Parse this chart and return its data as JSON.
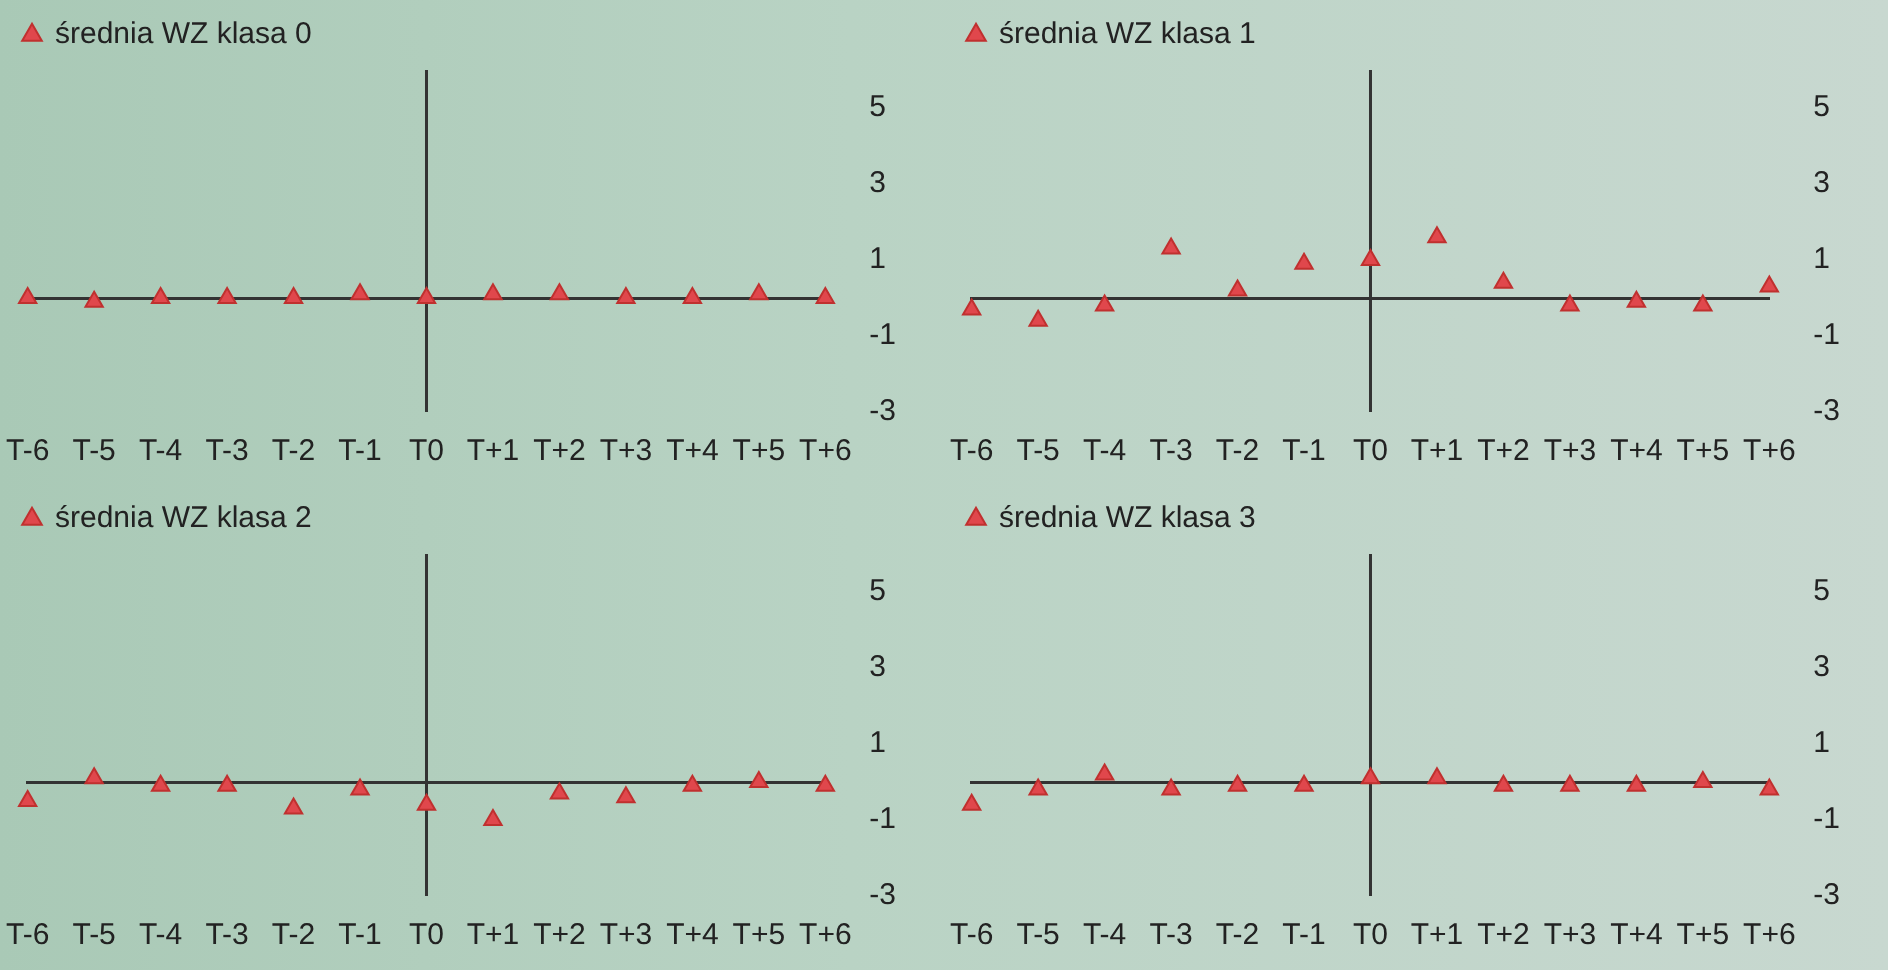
{
  "chart_data": [
    {
      "type": "scatter",
      "categories": [
        "T-6",
        "T-5",
        "T-4",
        "T-3",
        "T-2",
        "T-1",
        "T0",
        "T+1",
        "T+2",
        "T+3",
        "T+4",
        "T+5",
        "T+6"
      ],
      "series": [
        {
          "name": "średnia WZ klasa 0",
          "color": "#e0474c",
          "values": [
            0,
            -0.1,
            0,
            0,
            0,
            0.1,
            0,
            0.1,
            0.1,
            0,
            0,
            0.1,
            0
          ]
        }
      ],
      "ref_lines": [
        {
          "axis": "x",
          "value": "T0",
          "color": "#333333",
          "line_style": "solid"
        }
      ],
      "ylim": [
        -3,
        6
      ],
      "yticks": [
        -3,
        -1,
        1,
        3,
        5
      ],
      "legend": "top left",
      "marker": "triangle",
      "grid": false
    },
    {
      "type": "scatter",
      "categories": [
        "T-6",
        "T-5",
        "T-4",
        "T-3",
        "T-2",
        "T-1",
        "T0",
        "T+1",
        "T+2",
        "T+3",
        "T+4",
        "T+5",
        "T+6"
      ],
      "series": [
        {
          "name": "średnia WZ klasa 1",
          "color": "#e0474c",
          "values": [
            -0.3,
            -0.6,
            -0.2,
            1.3,
            0.2,
            0.9,
            1.0,
            1.6,
            0.4,
            -0.2,
            -0.1,
            -0.2,
            0.3
          ]
        }
      ],
      "ref_lines": [
        {
          "axis": "x",
          "value": "T0",
          "color": "#333333",
          "line_style": "solid"
        }
      ],
      "ylim": [
        -3,
        6
      ],
      "yticks": [
        -3,
        -1,
        1,
        3,
        5
      ],
      "legend": "top left",
      "marker": "triangle",
      "grid": false
    },
    {
      "type": "scatter",
      "categories": [
        "T-6",
        "T-5",
        "T-4",
        "T-3",
        "T-2",
        "T-1",
        "T0",
        "T+1",
        "T+2",
        "T+3",
        "T+4",
        "T+5",
        "T+6"
      ],
      "series": [
        {
          "name": "średnia WZ klasa 2",
          "color": "#e0474c",
          "values": [
            -0.5,
            0.1,
            -0.1,
            -0.1,
            -0.7,
            -0.2,
            -0.6,
            -1.0,
            -0.3,
            -0.4,
            -0.1,
            0,
            -0.1
          ]
        }
      ],
      "ref_lines": [
        {
          "axis": "x",
          "value": "T0",
          "color": "#333333",
          "line_style": "solid"
        }
      ],
      "ylim": [
        -3,
        6
      ],
      "yticks": [
        -3,
        -1,
        1,
        3,
        5
      ],
      "legend": "top left",
      "marker": "triangle",
      "grid": false
    },
    {
      "type": "scatter",
      "categories": [
        "T-6",
        "T-5",
        "T-4",
        "T-3",
        "T-2",
        "T-1",
        "T0",
        "T+1",
        "T+2",
        "T+3",
        "T+4",
        "T+5",
        "T+6"
      ],
      "series": [
        {
          "name": "średnia WZ klasa 3",
          "color": "#e0474c",
          "values": [
            -0.6,
            -0.2,
            0.2,
            -0.2,
            -0.1,
            -0.1,
            0.1,
            0.1,
            -0.1,
            -0.1,
            -0.1,
            0,
            -0.2
          ]
        }
      ],
      "ref_lines": [
        {
          "axis": "x",
          "value": "T0",
          "color": "#333333",
          "line_style": "solid"
        }
      ],
      "ylim": [
        -3,
        6
      ],
      "yticks": [
        -3,
        -1,
        1,
        3,
        5
      ],
      "legend": "top left",
      "marker": "triangle",
      "grid": false
    }
  ]
}
